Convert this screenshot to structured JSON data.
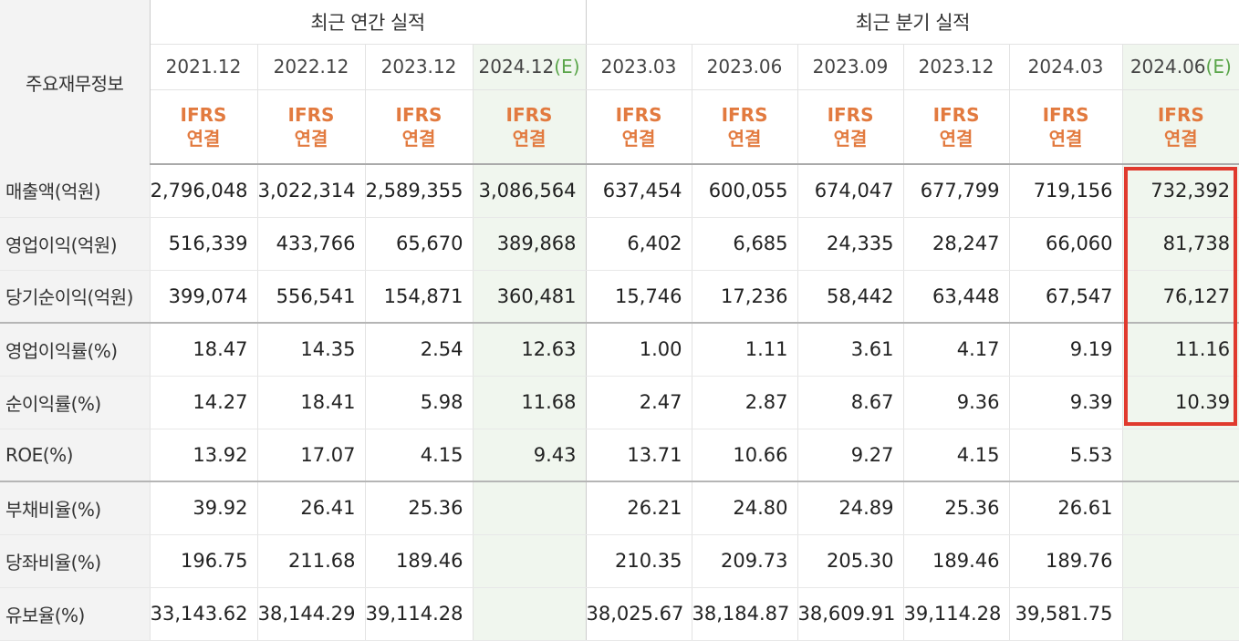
{
  "corner_label": "주요재무정보",
  "groups": {
    "annual": "최근 연간 실적",
    "quarterly": "최근 분기 실적"
  },
  "periods": [
    {
      "label": "2021.12",
      "est": ""
    },
    {
      "label": "2022.12",
      "est": ""
    },
    {
      "label": "2023.12",
      "est": ""
    },
    {
      "label": "2024.12",
      "est": "(E)"
    },
    {
      "label": "2023.03",
      "est": ""
    },
    {
      "label": "2023.06",
      "est": ""
    },
    {
      "label": "2023.09",
      "est": ""
    },
    {
      "label": "2023.12",
      "est": ""
    },
    {
      "label": "2024.03",
      "est": ""
    },
    {
      "label": "2024.06",
      "est": "(E)"
    }
  ],
  "accounting": {
    "line1": "IFRS",
    "line2": "연결"
  },
  "rows": [
    {
      "label": "매출액(억원)",
      "values": [
        "2,796,048",
        "3,022,314",
        "2,589,355",
        "3,086,564",
        "637,454",
        "600,055",
        "674,047",
        "677,799",
        "719,156",
        "732,392"
      ]
    },
    {
      "label": "영업이익(억원)",
      "values": [
        "516,339",
        "433,766",
        "65,670",
        "389,868",
        "6,402",
        "6,685",
        "24,335",
        "28,247",
        "66,060",
        "81,738"
      ]
    },
    {
      "label": "당기순이익(억원)",
      "values": [
        "399,074",
        "556,541",
        "154,871",
        "360,481",
        "15,746",
        "17,236",
        "58,442",
        "63,448",
        "67,547",
        "76,127"
      ]
    },
    {
      "label": "영업이익률(%)",
      "values": [
        "18.47",
        "14.35",
        "2.54",
        "12.63",
        "1.00",
        "1.11",
        "3.61",
        "4.17",
        "9.19",
        "11.16"
      ]
    },
    {
      "label": "순이익률(%)",
      "values": [
        "14.27",
        "18.41",
        "5.98",
        "11.68",
        "2.47",
        "2.87",
        "8.67",
        "9.36",
        "9.39",
        "10.39"
      ]
    },
    {
      "label": "ROE(%)",
      "values": [
        "13.92",
        "17.07",
        "4.15",
        "9.43",
        "13.71",
        "10.66",
        "9.27",
        "4.15",
        "5.53",
        ""
      ]
    },
    {
      "label": "부채비율(%)",
      "values": [
        "39.92",
        "26.41",
        "25.36",
        "",
        "26.21",
        "24.80",
        "24.89",
        "25.36",
        "26.61",
        ""
      ]
    },
    {
      "label": "당좌비율(%)",
      "values": [
        "196.75",
        "211.68",
        "189.46",
        "",
        "210.35",
        "209.73",
        "205.30",
        "189.46",
        "189.76",
        ""
      ]
    },
    {
      "label": "유보율(%)",
      "values": [
        "33,143.62",
        "38,144.29",
        "39,114.28",
        "",
        "38,025.67",
        "38,184.87",
        "38,609.91",
        "39,114.28",
        "39,581.75",
        ""
      ]
    }
  ],
  "colors": {
    "ifrs": "#e27a3f",
    "estimate": "#5aa54a",
    "highlight_box": "#e03a2e",
    "estimate_bg": "#f0f6ee"
  }
}
